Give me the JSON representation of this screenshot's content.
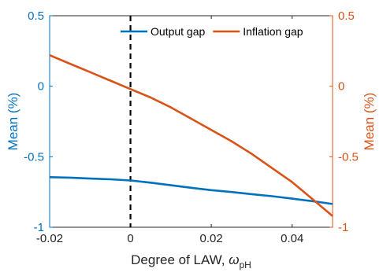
{
  "chart_data": {
    "type": "line",
    "xlabel": "Degree of LAW, ",
    "xlabel_symbol": "ω",
    "xlabel_subscript": "pH",
    "ylabel_left": "Mean (%)",
    "ylabel_right": "Mean (%)",
    "xlim": [
      -0.02,
      0.05
    ],
    "ylim": [
      -1,
      0.5
    ],
    "x_ticks": [
      -0.02,
      0,
      0.02,
      0.04
    ],
    "x_tick_labels": [
      "-0.02",
      "0",
      "0.02",
      "0.04"
    ],
    "y_ticks": [
      0.5,
      0,
      -0.5,
      -1
    ],
    "y_tick_labels": [
      "0.5",
      "0",
      "-0.5",
      "-1"
    ],
    "reference_line": {
      "x": 0,
      "style": "dashed",
      "color": "#000000"
    },
    "legend_position": "top-right",
    "series": [
      {
        "name": "Output gap",
        "color": "#0072BD",
        "axis": "left",
        "x": [
          -0.02,
          -0.015,
          -0.01,
          -0.005,
          0,
          0.005,
          0.01,
          0.015,
          0.02,
          0.025,
          0.03,
          0.035,
          0.04,
          0.045,
          0.05
        ],
        "values": [
          -0.645,
          -0.648,
          -0.655,
          -0.66,
          -0.668,
          -0.684,
          -0.702,
          -0.72,
          -0.737,
          -0.75,
          -0.765,
          -0.78,
          -0.797,
          -0.815,
          -0.835
        ]
      },
      {
        "name": "Inflation gap",
        "color": "#D95319",
        "axis": "right",
        "x": [
          -0.02,
          -0.015,
          -0.01,
          -0.005,
          0,
          0.005,
          0.01,
          0.015,
          0.02,
          0.025,
          0.03,
          0.035,
          0.04,
          0.045,
          0.05
        ],
        "values": [
          0.22,
          0.16,
          0.1,
          0.04,
          -0.02,
          -0.08,
          -0.15,
          -0.23,
          -0.31,
          -0.39,
          -0.48,
          -0.58,
          -0.68,
          -0.8,
          -0.92
        ]
      }
    ]
  }
}
